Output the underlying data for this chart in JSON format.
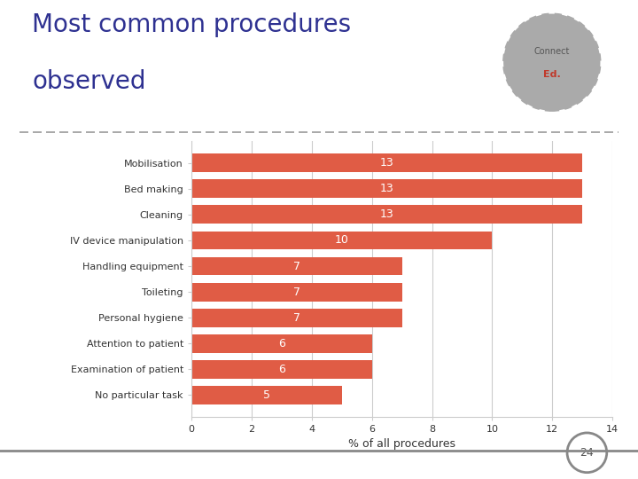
{
  "title_line1": "Most common procedures",
  "title_line2": "observed",
  "title_color": "#2e3191",
  "categories": [
    "Mobilisation",
    "Bed making",
    "Cleaning",
    "IV device manipulation",
    "Handling equipment",
    "Toileting",
    "Personal hygiene",
    "Attention to patient",
    "Examination of patient",
    "No particular task"
  ],
  "values": [
    13,
    13,
    13,
    10,
    7,
    7,
    7,
    6,
    6,
    5
  ],
  "bar_color": "#e05c45",
  "xlabel": "% of all procedures",
  "xlim": [
    0,
    14
  ],
  "xticks": [
    0,
    2,
    4,
    6,
    8,
    10,
    12,
    14
  ],
  "bar_label_color": "white",
  "bar_label_fontsize": 9,
  "background_color": "#ffffff",
  "grid_color": "#cccccc",
  "title_fontsize": 20,
  "axis_label_fontsize": 9,
  "tick_label_fontsize": 8,
  "category_label_fontsize": 8,
  "page_number": "24",
  "separator_color": "#999999",
  "logo_text1": "Connect",
  "logo_text2": "Ed.",
  "logo_color1": "#555555",
  "logo_color2": "#c0392b"
}
